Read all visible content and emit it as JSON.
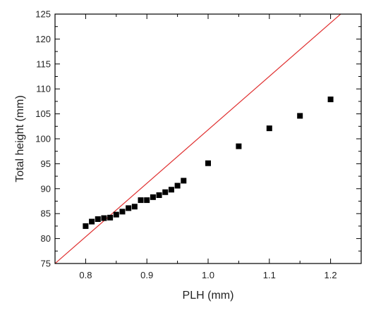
{
  "chart_data": {
    "type": "scatter",
    "title": "",
    "xlabel": "PLH (mm)",
    "ylabel": "Total height (mm)",
    "xlim": [
      0.75,
      1.25
    ],
    "ylim": [
      75,
      125
    ],
    "x_ticks": [
      0.8,
      0.9,
      1.0,
      1.1,
      1.2
    ],
    "x_tick_labels": [
      "0.8",
      "0.9",
      "1.0",
      "1.1",
      "1.2"
    ],
    "y_ticks": [
      75,
      80,
      85,
      90,
      95,
      100,
      105,
      110,
      115,
      120,
      125
    ],
    "y_tick_labels": [
      "75",
      "80",
      "85",
      "90",
      "95",
      "100",
      "105",
      "110",
      "115",
      "120",
      "125"
    ],
    "grid": false,
    "series": [
      {
        "marker": "square",
        "color": "#000000",
        "points": [
          {
            "x": 0.8,
            "y": 82.5
          },
          {
            "x": 0.81,
            "y": 83.4
          },
          {
            "x": 0.82,
            "y": 83.9
          },
          {
            "x": 0.83,
            "y": 84.1
          },
          {
            "x": 0.84,
            "y": 84.2
          },
          {
            "x": 0.85,
            "y": 84.8
          },
          {
            "x": 0.86,
            "y": 85.4
          },
          {
            "x": 0.87,
            "y": 86.1
          },
          {
            "x": 0.88,
            "y": 86.4
          },
          {
            "x": 0.89,
            "y": 87.7
          },
          {
            "x": 0.9,
            "y": 87.7
          },
          {
            "x": 0.91,
            "y": 88.3
          },
          {
            "x": 0.92,
            "y": 88.7
          },
          {
            "x": 0.93,
            "y": 89.3
          },
          {
            "x": 0.94,
            "y": 89.8
          },
          {
            "x": 0.95,
            "y": 90.6
          },
          {
            "x": 0.96,
            "y": 91.6
          },
          {
            "x": 1.0,
            "y": 95.1
          },
          {
            "x": 1.05,
            "y": 98.5
          },
          {
            "x": 1.1,
            "y": 102.1
          },
          {
            "x": 1.15,
            "y": 104.6
          },
          {
            "x": 1.2,
            "y": 107.9
          }
        ]
      }
    ],
    "reference_line": {
      "color": "#e03030",
      "points": [
        {
          "x": 0.75,
          "y": 75
        },
        {
          "x": 1.25,
          "y": 128.6
        }
      ]
    }
  }
}
